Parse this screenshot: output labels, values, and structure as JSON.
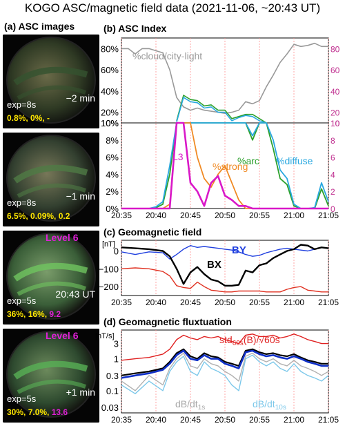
{
  "title": "KOGO ASC/magnetic field data (2021-11-06, ~20:43 UT)",
  "panel_a": {
    "label": "(a) ASC images",
    "images": [
      {
        "exp": "exp=8s",
        "time": "−2 min",
        "level": "",
        "stats": [
          "0.8%",
          "0%",
          "-"
        ],
        "stat_colors": [
          "#ffe600",
          "#ffe600",
          "#ffe600"
        ],
        "sky": "#2f3a24",
        "glow": "#6a6a48",
        "arc": "#35522f"
      },
      {
        "exp": "exp=8s",
        "time": "−1 min",
        "level": "",
        "stats": [
          "6.5%",
          "0.09%",
          "0.2"
        ],
        "stat_colors": [
          "#ffe600",
          "#ffe600",
          "#ffe600"
        ],
        "sky": "#334030",
        "glow": "#777758",
        "arc": "#4f7a45"
      },
      {
        "exp": "exp=5s",
        "time": "20:43 UT",
        "level": "Level 6",
        "stats": [
          "36%",
          "16%",
          "9.2"
        ],
        "stat_colors": [
          "#ffe600",
          "#ffe600",
          "#e020d8"
        ],
        "sky": "#3a5e38",
        "glow": "#7a9c6a",
        "arc": "#6fc45f"
      },
      {
        "exp": "exp=5s",
        "time": "+1 min",
        "level": "Level 6",
        "stats": [
          "30%",
          "7.0%",
          "13.6"
        ],
        "stat_colors": [
          "#ffe600",
          "#ffe600",
          "#e020d8"
        ],
        "sky": "#2e4a2f",
        "glow": "#6c8a5c",
        "arc": "#58b055"
      }
    ]
  },
  "chart_data": [
    {
      "type": "line",
      "title": "(b) ASC Index",
      "x_ticks": [
        "20:35",
        "20:40",
        "20:45",
        "20:50",
        "20:55",
        "21:00",
        "21:05"
      ],
      "xlim_min": [
        0,
        30
      ],
      "upper": {
        "left_ticks": [
          "80%",
          "60%",
          "40%",
          "20%",
          "10%"
        ],
        "right_ticks": [
          "80",
          "60",
          "40",
          "20",
          "10"
        ],
        "ylim": [
          10,
          90
        ],
        "series": [
          {
            "name": "%cloud/city-light",
            "color": "#999999",
            "x": [
              0,
              1,
              2,
              3,
              4,
              5,
              6,
              7,
              8,
              9,
              10,
              11,
              12,
              13,
              14,
              15,
              16,
              17,
              18,
              19,
              20,
              21,
              22,
              23,
              24,
              25,
              26,
              27,
              28,
              29,
              30
            ],
            "values": [
              80,
              80,
              75,
              80,
              80,
              78,
              76,
              60,
              34,
              25,
              22,
              24,
              22,
              21,
              20,
              19,
              20,
              22,
              30,
              28,
              31,
              44,
              55,
              67,
              75,
              84,
              82,
              83,
              85,
              82,
              82
            ]
          },
          {
            "name": "%arc",
            "color": "#2ca02c",
            "x": [
              8,
              9,
              10,
              11,
              12,
              13,
              14,
              15,
              16,
              17,
              18,
              19,
              20,
              21
            ],
            "values": [
              12,
              36,
              32,
              31,
              26,
              27,
              22,
              22,
              14,
              16,
              18,
              18,
              14,
              10
            ]
          },
          {
            "name": "%diffuse",
            "color": "#29a8e0",
            "x": [
              8,
              9,
              10,
              11,
              12,
              13,
              14,
              15,
              16,
              17,
              18,
              19,
              20,
              21
            ],
            "values": [
              11,
              34,
              30,
              29,
              24,
              25,
              20,
              20,
              12,
              15,
              17,
              16,
              12,
              10
            ]
          }
        ]
      },
      "lower": {
        "left_ticks": [
          "10%",
          "8%",
          "6%",
          "4%",
          "2%",
          "0%"
        ],
        "right_ticks": [
          "10",
          "8",
          "6",
          "4",
          "2",
          "0"
        ],
        "ylim": [
          0,
          10
        ],
        "series": [
          {
            "name": "%arc",
            "color": "#2ca02c",
            "x": [
              0,
              1,
              2,
              3,
              4,
              5,
              6,
              7,
              8,
              9,
              10,
              11,
              12,
              13,
              14,
              15,
              16,
              17,
              18,
              19,
              20,
              21,
              22,
              23,
              24,
              25,
              26,
              27,
              28,
              29,
              30
            ],
            "values": [
              0,
              0,
              0,
              0,
              0,
              0.1,
              0.5,
              4,
              10,
              10,
              10,
              10,
              10,
              10,
              10,
              10,
              10,
              10,
              10,
              8,
              10,
              10,
              7,
              3.5,
              2.8,
              0.3,
              0,
              0,
              0,
              2.3,
              0.3
            ]
          },
          {
            "name": "%diffuse",
            "color": "#29a8e0",
            "x": [
              0,
              1,
              2,
              3,
              4,
              5,
              6,
              7,
              8,
              9,
              10,
              11,
              12,
              13,
              14,
              15,
              16,
              17,
              18,
              19,
              20,
              21,
              22,
              23,
              24,
              25,
              26,
              27,
              28,
              29,
              30
            ],
            "values": [
              0,
              0,
              0,
              0,
              0,
              0.2,
              0.8,
              5,
              10,
              10,
              10,
              10,
              10,
              10,
              10,
              10,
              10,
              10,
              10,
              8.5,
              10,
              10,
              8,
              4.5,
              3.5,
              0.5,
              0,
              0,
              0.1,
              3,
              0.8
            ]
          },
          {
            "name": "%strong",
            "color": "#f08a24",
            "x": [
              0,
              1,
              2,
              3,
              4,
              5,
              6,
              7,
              8,
              9,
              10,
              11,
              12,
              13,
              14,
              15,
              16,
              17,
              18,
              19,
              20,
              21,
              22,
              23,
              24,
              25,
              26,
              27,
              28,
              29,
              30
            ],
            "values": [
              0,
              0,
              0,
              0,
              0,
              0,
              0,
              0.5,
              10,
              10,
              10,
              6,
              3.5,
              2.5,
              4,
              5,
              3,
              1,
              0,
              0,
              0,
              0,
              0,
              0,
              0,
              0,
              0,
              0,
              0,
              0,
              0
            ]
          },
          {
            "name": "L3",
            "color": "#d918c8",
            "x": [
              0,
              1,
              2,
              3,
              4,
              5,
              6,
              7,
              8,
              9,
              10,
              11,
              12,
              13,
              14,
              15,
              16,
              17,
              18,
              19,
              20,
              21,
              22,
              23,
              24,
              25,
              26,
              27,
              28,
              29,
              30
            ],
            "values": [
              0,
              0,
              0,
              0,
              0,
              0,
              0,
              0,
              10,
              10,
              3,
              2,
              0.3,
              3,
              3.8,
              1.5,
              1,
              0.3,
              0.3,
              0,
              0,
              0,
              0,
              0,
              0,
              0,
              0,
              0,
              0,
              0,
              0
            ]
          }
        ]
      }
    },
    {
      "type": "line",
      "title": "(c) Geomagnetic field",
      "unit": "[nT]",
      "x_ticks": [
        "20:35",
        "20:40",
        "20:45",
        "20:50",
        "20:55",
        "21:00",
        "21:05"
      ],
      "y_ticks": [
        "0",
        "−100",
        "−200"
      ],
      "ylim": [
        -250,
        60
      ],
      "series": [
        {
          "name": "BY",
          "color": "#1f3fdf",
          "x": [
            0,
            2,
            4,
            6,
            7,
            8,
            9,
            10,
            11,
            12,
            13,
            14,
            15,
            16,
            17,
            18,
            19,
            20,
            21,
            22,
            23,
            24,
            25,
            26,
            27,
            28,
            29,
            30
          ],
          "values": [
            -5,
            -20,
            -5,
            -10,
            -45,
            -20,
            10,
            30,
            20,
            25,
            20,
            15,
            10,
            5,
            -5,
            -20,
            -30,
            -25,
            -10,
            0,
            10,
            15,
            10,
            5,
            0,
            10,
            20,
            15
          ]
        },
        {
          "name": "BX",
          "color": "#000000",
          "x": [
            0,
            2,
            4,
            6,
            7,
            8,
            9,
            10,
            11,
            12,
            13,
            14,
            15,
            16,
            17,
            18,
            19,
            20,
            21,
            22,
            23,
            24,
            25,
            26,
            27,
            28,
            29,
            30
          ],
          "values": [
            20,
            15,
            10,
            0,
            -30,
            -100,
            -185,
            -120,
            -90,
            -130,
            -160,
            -170,
            -195,
            -195,
            -190,
            -110,
            -120,
            -80,
            -70,
            -40,
            -20,
            0,
            10,
            35,
            30,
            10,
            20,
            15
          ]
        },
        {
          "name": "",
          "color": "#e03020",
          "x": [
            0,
            2,
            4,
            6,
            7,
            8,
            9,
            10,
            11,
            12,
            13,
            14,
            15,
            16,
            17,
            18,
            19,
            20,
            21,
            22,
            23,
            24,
            25,
            26,
            27,
            28,
            29,
            30
          ],
          "values": [
            -100,
            -95,
            -100,
            -115,
            -140,
            -195,
            -205,
            -210,
            -175,
            -200,
            -220,
            -225,
            -230,
            -230,
            -225,
            -225,
            -225,
            -225,
            -230,
            -230,
            -230,
            -215,
            -205,
            -200,
            -220,
            -225,
            -230,
            -230
          ]
        }
      ]
    },
    {
      "type": "line",
      "title": "(d) Geomagnetic fluxtuation",
      "unit": "[nT/s]",
      "x_ticks": [
        "20:35",
        "20:40",
        "20:45",
        "20:50",
        "20:55",
        "21:00",
        "21:05"
      ],
      "y_ticks": [
        "3",
        "1",
        "0.3",
        "0.1",
        "0.03"
      ],
      "log_scale": true,
      "ylim": [
        0.02,
        8
      ],
      "labels": {
        "std": "std",
        "std_sub": "60s",
        "std_rest": "(B)/√60s",
        "dt1": "<dB/dt",
        "dt1_sub": "1s",
        "dt1_tail": ">",
        "dt1g": "dB/dt",
        "dt1g_sub": "1s",
        "dt10": "<dB/dt",
        "dt10_sub": "10s",
        "dt10_tail": ">",
        "dt10g": "dB/dt",
        "dt10g_sub": "10s"
      },
      "series": [
        {
          "name": "std60s(B)/√60s",
          "color": "#e02020",
          "x": [
            0,
            2,
            4,
            6,
            7,
            8,
            9,
            10,
            11,
            12,
            13,
            14,
            15,
            16,
            17,
            18,
            19,
            20,
            21,
            22,
            23,
            24,
            25,
            26,
            27,
            28,
            29,
            30
          ],
          "values": [
            0.9,
            1.0,
            1.1,
            1.4,
            2.0,
            4.0,
            5.5,
            4.5,
            4.0,
            5.0,
            4.5,
            5.0,
            4.0,
            3.5,
            3.0,
            5.5,
            6.0,
            5.0,
            5.0,
            5.5,
            4.5,
            5.0,
            6.0,
            5.0,
            4.0,
            3.5,
            3.0,
            3.0
          ]
        },
        {
          "name": "<dB/dt1s>",
          "color": "#000000",
          "x": [
            0,
            2,
            4,
            6,
            7,
            8,
            9,
            10,
            11,
            12,
            13,
            14,
            15,
            16,
            17,
            18,
            19,
            20,
            21,
            22,
            23,
            24,
            25,
            26,
            27,
            28,
            29,
            30
          ],
          "values": [
            0.3,
            0.35,
            0.4,
            0.5,
            0.8,
            1.5,
            2.0,
            1.2,
            1.0,
            1.5,
            1.2,
            1.1,
            0.8,
            0.7,
            0.6,
            1.8,
            2.0,
            1.6,
            1.4,
            1.5,
            1.3,
            1.2,
            1.4,
            1.1,
            0.9,
            0.8,
            0.7,
            0.7
          ]
        },
        {
          "name": "<dB/dt10s>",
          "color": "#1030c8",
          "x": [
            0,
            2,
            4,
            6,
            7,
            8,
            9,
            10,
            11,
            12,
            13,
            14,
            15,
            16,
            17,
            18,
            19,
            20,
            21,
            22,
            23,
            24,
            25,
            26,
            27,
            28,
            29,
            30
          ],
          "values": [
            0.25,
            0.3,
            0.35,
            0.45,
            0.7,
            1.3,
            1.8,
            1.0,
            0.9,
            1.3,
            1.0,
            1.0,
            0.7,
            0.6,
            0.5,
            1.6,
            1.8,
            1.4,
            1.2,
            1.3,
            1.1,
            1.0,
            1.2,
            1.0,
            0.8,
            0.7,
            0.6,
            0.6
          ]
        },
        {
          "name": "dB/dt1s",
          "color": "#b0b0b0",
          "x": [
            0,
            2,
            4,
            6,
            7,
            8,
            9,
            10,
            11,
            12,
            13,
            14,
            15,
            16,
            17,
            18,
            19,
            20,
            21,
            22,
            23,
            24,
            25,
            26,
            27,
            28,
            29,
            30
          ],
          "values": [
            0.2,
            0.1,
            0.3,
            0.15,
            0.5,
            1.0,
            1.5,
            0.6,
            0.5,
            1.0,
            0.7,
            0.6,
            0.4,
            0.3,
            0.2,
            1.2,
            1.5,
            1.0,
            0.8,
            1.0,
            0.7,
            0.6,
            0.9,
            0.6,
            0.5,
            0.4,
            0.3,
            0.4
          ]
        },
        {
          "name": "dB/dt10s",
          "color": "#7cc8ea",
          "x": [
            0,
            2,
            4,
            6,
            7,
            8,
            9,
            10,
            11,
            12,
            13,
            14,
            15,
            16,
            17,
            18,
            19,
            20,
            21,
            22,
            23,
            24,
            25,
            26,
            27,
            28,
            29,
            30
          ],
          "values": [
            0.15,
            0.08,
            0.2,
            0.1,
            0.4,
            0.8,
            1.2,
            0.4,
            0.3,
            0.8,
            0.5,
            0.4,
            0.3,
            0.15,
            0.1,
            1.0,
            1.3,
            0.8,
            0.6,
            0.8,
            0.5,
            0.4,
            0.7,
            0.4,
            0.3,
            0.25,
            0.2,
            0.3
          ]
        }
      ]
    }
  ]
}
